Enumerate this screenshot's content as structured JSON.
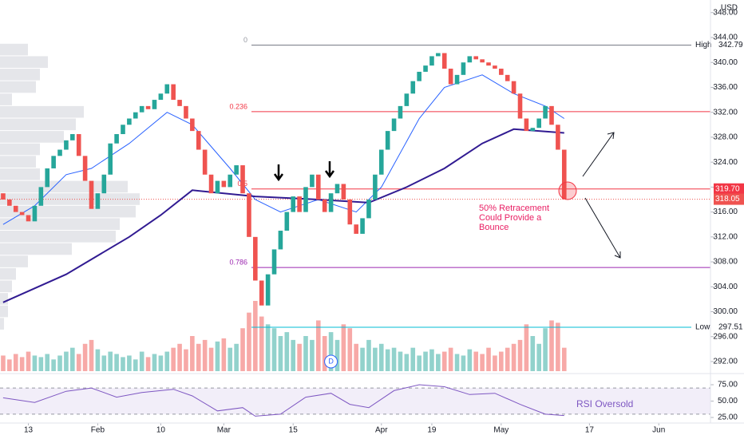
{
  "chart_data": {
    "type": "candlestick",
    "currency": "USD",
    "xlim": [
      -0.5,
      112.2
    ],
    "ylim": [
      290.46,
      350.02
    ],
    "xticks": [
      {
        "value": 4,
        "label": "13"
      },
      {
        "value": 15,
        "label": "Feb"
      },
      {
        "value": 25,
        "label": "10"
      },
      {
        "value": 35,
        "label": "Mar"
      },
      {
        "value": 46,
        "label": "15"
      },
      {
        "value": 60,
        "label": "Apr"
      },
      {
        "value": 68,
        "label": "19"
      },
      {
        "value": 79,
        "label": "May"
      },
      {
        "value": 93,
        "label": "17"
      },
      {
        "value": 104,
        "label": "Jun"
      }
    ],
    "yticks": [
      {
        "value": 348,
        "label": "348.00"
      },
      {
        "value": 344,
        "label": "344.00"
      },
      {
        "value": 340,
        "label": "340.00"
      },
      {
        "value": 336,
        "label": "336.00"
      },
      {
        "value": 332,
        "label": "332.00"
      },
      {
        "value": 328,
        "label": "328.00"
      },
      {
        "value": 324,
        "label": "324.00"
      },
      {
        "value": 320,
        "label": "320.00"
      },
      {
        "value": 316,
        "label": "316.00"
      },
      {
        "value": 312,
        "label": "312.00"
      },
      {
        "value": 308,
        "label": "308.00"
      },
      {
        "value": 304,
        "label": "304.00"
      },
      {
        "value": 300,
        "label": "300.00"
      },
      {
        "value": 296,
        "label": "296.00"
      },
      {
        "value": 292,
        "label": "292.00"
      }
    ],
    "up_color": "#26a69a",
    "down_color": "#ef5350",
    "open": [
      319,
      318,
      317,
      316,
      315.5,
      314.5,
      317,
      320,
      323,
      325,
      326,
      327.5,
      328.5,
      325,
      321,
      316.5,
      319,
      322,
      327,
      328.5,
      330,
      331,
      332,
      333,
      332.5,
      334,
      335,
      336.5,
      334,
      333,
      331,
      329,
      326,
      322,
      319,
      321,
      320,
      322,
      323.5,
      319,
      312,
      305,
      301,
      306,
      310,
      313,
      316,
      318.5,
      316,
      320,
      322,
      318,
      316,
      319,
      320.5,
      318,
      314,
      312.5,
      315,
      318,
      322,
      326,
      329,
      331,
      333,
      335,
      337,
      338.5,
      339.5,
      341,
      341.5,
      339,
      336.5,
      338,
      340,
      341,
      340.5,
      340,
      339.5,
      339,
      338,
      337,
      335,
      331,
      329,
      329.5,
      331,
      333,
      330,
      326
    ],
    "close": [
      318,
      317,
      316,
      315.5,
      314.5,
      317,
      320,
      323,
      325,
      326,
      327.5,
      328.5,
      325,
      321,
      316.5,
      319,
      322,
      327,
      328.5,
      330,
      331,
      332,
      333,
      332.5,
      334,
      335,
      336.5,
      334,
      333,
      331,
      329,
      326,
      322,
      319,
      321,
      320,
      322,
      323.5,
      319,
      312,
      305,
      301,
      306,
      310,
      313,
      316,
      318.5,
      316,
      320,
      322,
      318,
      316,
      319,
      320.5,
      318,
      314,
      312.5,
      315,
      318,
      322,
      326,
      329,
      331,
      333,
      335,
      337,
      338.5,
      339.5,
      341,
      341.5,
      339,
      336.5,
      338,
      340,
      341,
      340.5,
      340,
      339.5,
      339,
      338,
      337,
      335,
      331,
      329,
      329.5,
      331,
      333,
      330,
      326,
      318.05
    ],
    "volume": [
      20,
      15,
      22,
      18,
      25,
      20,
      18,
      22,
      15,
      20,
      25,
      30,
      22,
      35,
      40,
      28,
      20,
      25,
      22,
      18,
      20,
      15,
      25,
      18,
      22,
      20,
      25,
      30,
      35,
      28,
      45,
      35,
      40,
      30,
      38,
      42,
      30,
      35,
      55,
      75,
      90,
      70,
      60,
      55,
      45,
      50,
      40,
      35,
      45,
      40,
      65,
      45,
      50,
      40,
      60,
      55,
      35,
      30,
      40,
      30,
      35,
      28,
      30,
      25,
      22,
      30,
      20,
      25,
      28,
      22,
      25,
      30,
      22,
      20,
      28,
      25,
      22,
      30,
      20,
      25,
      30,
      35,
      40,
      60,
      45,
      35,
      55,
      65,
      62,
      30
    ],
    "moving_averages": [
      {
        "color": "#2962ff",
        "x": [
          0,
          5,
          10,
          14,
          20,
          26,
          30,
          36,
          40,
          44,
          50,
          56,
          60,
          66,
          70,
          76,
          81,
          86,
          89
        ],
        "values": [
          314,
          317,
          322,
          323,
          327,
          332,
          330,
          323,
          318,
          316,
          318,
          316,
          320,
          331,
          336,
          338,
          335,
          333,
          331
        ]
      },
      {
        "color": "#311b92",
        "x": [
          0,
          10,
          20,
          25,
          30,
          40,
          50,
          58,
          64,
          70,
          76,
          81,
          89
        ],
        "values": [
          301.5,
          306,
          312,
          315.5,
          319.5,
          318.5,
          318,
          317.5,
          320,
          323,
          327,
          329.3,
          328.7
        ]
      }
    ],
    "volume_profile": {
      "levels": [
        342,
        340,
        338,
        336,
        334,
        332,
        330,
        328,
        326,
        324,
        322,
        320,
        318,
        316,
        314,
        312,
        310,
        308,
        306,
        304,
        302,
        300,
        298
      ],
      "values": [
        35,
        60,
        50,
        45,
        15,
        105,
        95,
        80,
        50,
        45,
        50,
        160,
        175,
        170,
        150,
        145,
        90,
        35,
        20,
        15,
        10,
        10,
        5
      ]
    },
    "fib_levels": [
      {
        "level": "0",
        "price": 342.79,
        "color": "#9598a1"
      },
      {
        "level": "0.236",
        "price": 332.1,
        "color": "#f23645"
      },
      {
        "level": "0.5",
        "price": 319.7,
        "price_label": "319.70",
        "color": "#f23645"
      },
      {
        "level": "0.786",
        "price": 307.1,
        "color": "#9c27b0"
      }
    ],
    "price_lines": [
      {
        "name": "High",
        "value": 342.79,
        "value_label": "342.79",
        "color": "#787b86"
      },
      {
        "name": "Low",
        "value": 297.51,
        "value_label": "297.51",
        "color": "#00bcd4"
      }
    ],
    "last_price": {
      "value": 318.05,
      "label": "318.05"
    },
    "annotation": [
      "50% Retracement",
      "Could Provide a",
      "Bounce"
    ],
    "event_marker": {
      "label": "D",
      "x": 52
    },
    "rsi": {
      "label": "RSI Oversold",
      "color": "#7e57c2",
      "ylim": [
        16.5,
        92.07
      ],
      "band": [
        30,
        70
      ],
      "yticks": [
        {
          "value": 75,
          "label": "75.00"
        },
        {
          "value": 50,
          "label": "50.00"
        },
        {
          "value": 25,
          "label": "25.00"
        }
      ],
      "x": [
        0,
        5,
        10,
        14,
        18,
        22,
        27,
        30,
        34,
        38,
        40,
        44,
        48,
        52,
        55,
        58,
        62,
        66,
        70,
        74,
        78,
        82,
        86,
        89
      ],
      "values": [
        55,
        48,
        65,
        70,
        56,
        63,
        68,
        58,
        35,
        40,
        27,
        30,
        56,
        62,
        45,
        40,
        66,
        75,
        72,
        60,
        62,
        45,
        30,
        28
      ]
    }
  }
}
